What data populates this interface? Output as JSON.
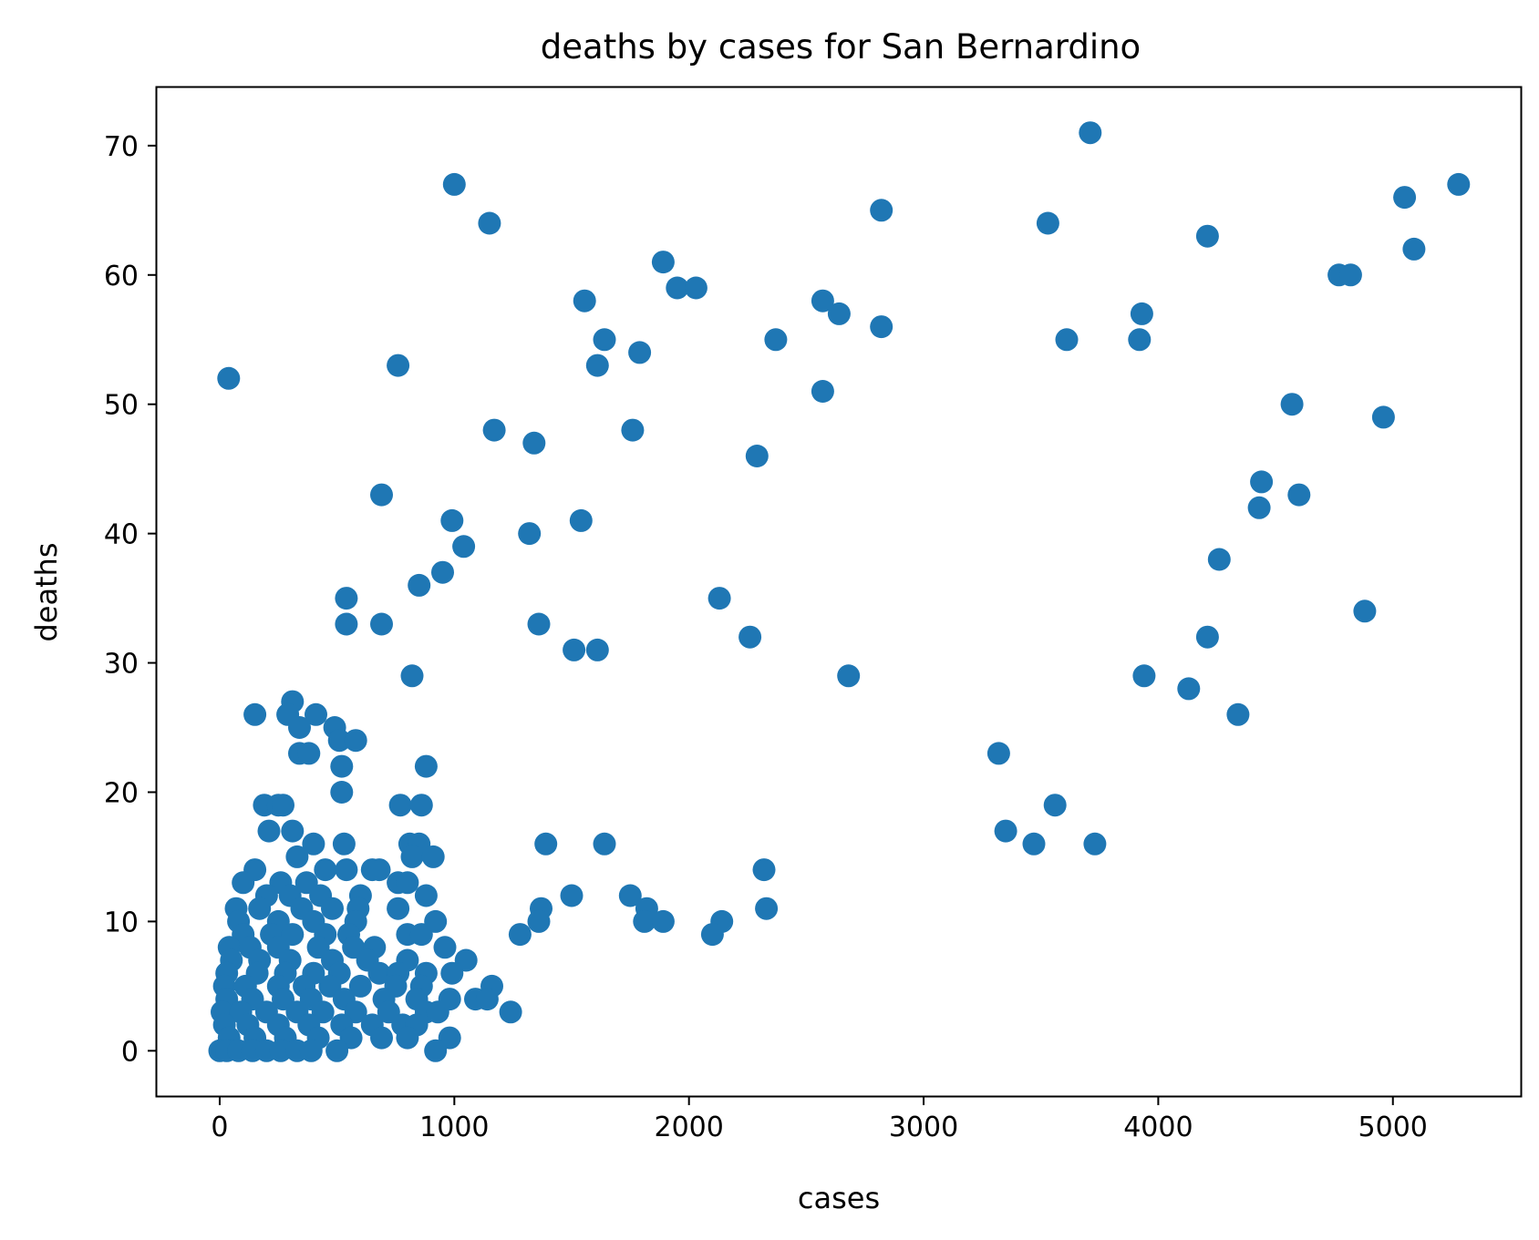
{
  "chart_data": {
    "type": "scatter",
    "title": "deaths by cases for San Bernardino",
    "xlabel": "cases",
    "ylabel": "deaths",
    "xlim": [
      -268,
      5545
    ],
    "ylim": [
      -3.5,
      74.5
    ],
    "xticks": [
      0,
      1000,
      2000,
      3000,
      4000,
      5000
    ],
    "yticks": [
      0,
      10,
      20,
      30,
      40,
      50,
      60,
      70
    ],
    "grid": false,
    "marker_color": "#1f77b4",
    "points": [
      [
        38,
        52
      ],
      [
        1000,
        67
      ],
      [
        1150,
        64
      ],
      [
        3710,
        71
      ],
      [
        5280,
        67
      ],
      [
        2820,
        65
      ],
      [
        3530,
        64
      ],
      [
        4210,
        63
      ],
      [
        5050,
        66
      ],
      [
        5090,
        62
      ],
      [
        4770,
        60
      ],
      [
        4820,
        60
      ],
      [
        1890,
        61
      ],
      [
        1950,
        59
      ],
      [
        2030,
        59
      ],
      [
        1555,
        58
      ],
      [
        2570,
        58
      ],
      [
        2640,
        57
      ],
      [
        3930,
        57
      ],
      [
        3920,
        55
      ],
      [
        3610,
        55
      ],
      [
        2820,
        56
      ],
      [
        1640,
        55
      ],
      [
        1790,
        54
      ],
      [
        1610,
        53
      ],
      [
        760,
        53
      ],
      [
        2370,
        55
      ],
      [
        2570,
        51
      ],
      [
        4570,
        50
      ],
      [
        4960,
        49
      ],
      [
        1170,
        48
      ],
      [
        1760,
        48
      ],
      [
        1340,
        47
      ],
      [
        2290,
        46
      ],
      [
        4440,
        44
      ],
      [
        4600,
        43
      ],
      [
        4430,
        42
      ],
      [
        690,
        43
      ],
      [
        990,
        41
      ],
      [
        1540,
        41
      ],
      [
        1040,
        39
      ],
      [
        1320,
        40
      ],
      [
        4260,
        38
      ],
      [
        950,
        37
      ],
      [
        850,
        36
      ],
      [
        540,
        35
      ],
      [
        2130,
        35
      ],
      [
        4880,
        34
      ],
      [
        540,
        33
      ],
      [
        690,
        33
      ],
      [
        1360,
        33
      ],
      [
        2260,
        32
      ],
      [
        4210,
        32
      ],
      [
        1510,
        31
      ],
      [
        1610,
        31
      ],
      [
        2680,
        29
      ],
      [
        3940,
        29
      ],
      [
        820,
        29
      ],
      [
        4130,
        28
      ],
      [
        4340,
        26
      ],
      [
        150,
        26
      ],
      [
        310,
        27
      ],
      [
        290,
        26
      ],
      [
        340,
        25
      ],
      [
        410,
        26
      ],
      [
        490,
        25
      ],
      [
        510,
        24
      ],
      [
        580,
        24
      ],
      [
        340,
        23
      ],
      [
        380,
        23
      ],
      [
        520,
        22
      ],
      [
        880,
        22
      ],
      [
        520,
        20
      ],
      [
        3320,
        23
      ],
      [
        3560,
        19
      ],
      [
        3350,
        17
      ],
      [
        3470,
        16
      ],
      [
        3730,
        16
      ],
      [
        190,
        19
      ],
      [
        250,
        19
      ],
      [
        270,
        19
      ],
      [
        770,
        19
      ],
      [
        860,
        19
      ],
      [
        210,
        17
      ],
      [
        310,
        17
      ],
      [
        400,
        16
      ],
      [
        530,
        16
      ],
      [
        810,
        16
      ],
      [
        850,
        16
      ],
      [
        1390,
        16
      ],
      [
        1640,
        16
      ],
      [
        330,
        15
      ],
      [
        820,
        15
      ],
      [
        910,
        15
      ],
      [
        150,
        14
      ],
      [
        450,
        14
      ],
      [
        540,
        14
      ],
      [
        650,
        14
      ],
      [
        680,
        14
      ],
      [
        2320,
        14
      ],
      [
        100,
        13
      ],
      [
        260,
        13
      ],
      [
        370,
        13
      ],
      [
        760,
        13
      ],
      [
        800,
        13
      ],
      [
        200,
        12
      ],
      [
        300,
        12
      ],
      [
        430,
        12
      ],
      [
        600,
        12
      ],
      [
        880,
        12
      ],
      [
        1500,
        12
      ],
      [
        1750,
        12
      ],
      [
        70,
        11
      ],
      [
        170,
        11
      ],
      [
        350,
        11
      ],
      [
        480,
        11
      ],
      [
        590,
        11
      ],
      [
        760,
        11
      ],
      [
        1370,
        11
      ],
      [
        1820,
        11
      ],
      [
        2330,
        11
      ],
      [
        80,
        10
      ],
      [
        250,
        10
      ],
      [
        400,
        10
      ],
      [
        580,
        10
      ],
      [
        920,
        10
      ],
      [
        1360,
        10
      ],
      [
        1810,
        10
      ],
      [
        1890,
        10
      ],
      [
        2140,
        10
      ],
      [
        100,
        9
      ],
      [
        220,
        9
      ],
      [
        310,
        9
      ],
      [
        450,
        9
      ],
      [
        550,
        9
      ],
      [
        800,
        9
      ],
      [
        860,
        9
      ],
      [
        1280,
        9
      ],
      [
        2100,
        9
      ],
      [
        40,
        8
      ],
      [
        130,
        8
      ],
      [
        250,
        8
      ],
      [
        420,
        8
      ],
      [
        570,
        8
      ],
      [
        660,
        8
      ],
      [
        960,
        8
      ],
      [
        50,
        7
      ],
      [
        170,
        7
      ],
      [
        300,
        7
      ],
      [
        480,
        7
      ],
      [
        630,
        7
      ],
      [
        800,
        7
      ],
      [
        1050,
        7
      ],
      [
        30,
        6
      ],
      [
        160,
        6
      ],
      [
        280,
        6
      ],
      [
        400,
        6
      ],
      [
        510,
        6
      ],
      [
        680,
        6
      ],
      [
        760,
        6
      ],
      [
        880,
        6
      ],
      [
        990,
        6
      ],
      [
        20,
        5
      ],
      [
        110,
        5
      ],
      [
        250,
        5
      ],
      [
        360,
        5
      ],
      [
        470,
        5
      ],
      [
        600,
        5
      ],
      [
        750,
        5
      ],
      [
        860,
        5
      ],
      [
        1160,
        5
      ],
      [
        30,
        4
      ],
      [
        140,
        4
      ],
      [
        270,
        4
      ],
      [
        390,
        4
      ],
      [
        530,
        4
      ],
      [
        700,
        4
      ],
      [
        840,
        4
      ],
      [
        980,
        4
      ],
      [
        1090,
        4
      ],
      [
        1140,
        4
      ],
      [
        10,
        3
      ],
      [
        90,
        3
      ],
      [
        200,
        3
      ],
      [
        330,
        3
      ],
      [
        440,
        3
      ],
      [
        580,
        3
      ],
      [
        720,
        3
      ],
      [
        880,
        3
      ],
      [
        930,
        3
      ],
      [
        1240,
        3
      ],
      [
        20,
        2
      ],
      [
        120,
        2
      ],
      [
        250,
        2
      ],
      [
        380,
        2
      ],
      [
        520,
        2
      ],
      [
        650,
        2
      ],
      [
        780,
        2
      ],
      [
        840,
        2
      ],
      [
        40,
        1
      ],
      [
        150,
        1
      ],
      [
        280,
        1
      ],
      [
        420,
        1
      ],
      [
        560,
        1
      ],
      [
        690,
        1
      ],
      [
        800,
        1
      ],
      [
        980,
        1
      ],
      [
        0,
        0
      ],
      [
        30,
        0
      ],
      [
        80,
        0
      ],
      [
        140,
        0
      ],
      [
        200,
        0
      ],
      [
        260,
        0
      ],
      [
        330,
        0
      ],
      [
        390,
        0
      ],
      [
        500,
        0
      ],
      [
        920,
        0
      ]
    ]
  }
}
